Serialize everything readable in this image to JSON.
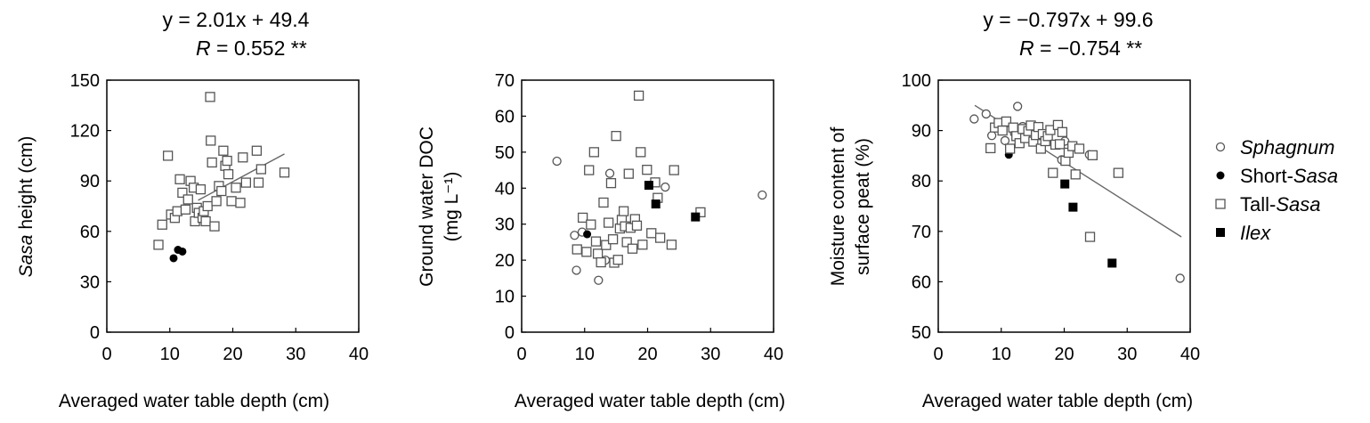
{
  "figure": {
    "legend": [
      {
        "label_prefix": "",
        "label_italic": "Sphagnum",
        "label_suffix": "",
        "marker": "open-circle"
      },
      {
        "label_prefix": "Short-",
        "label_italic": "Sasa",
        "label_suffix": "",
        "marker": "filled-circle"
      },
      {
        "label_prefix": "Tall-",
        "label_italic": "Sasa",
        "label_suffix": "",
        "marker": "open-square"
      },
      {
        "label_prefix": "",
        "label_italic": "Ilex",
        "label_suffix": "",
        "marker": "filled-square"
      }
    ],
    "colors": {
      "axis": "#000000",
      "open_marker_stroke": "#555555",
      "fill": "#000000",
      "fit_line": "#666666"
    }
  },
  "chart_data": [
    {
      "type": "scatter",
      "title": "",
      "equation": "y = 2.01x + 49.4",
      "r_label": "R",
      "r_value": " = 0.552 **",
      "ylabel_italic": "Sasa",
      "ylabel_rest": " height (cm)",
      "ylabel_line2": "",
      "xlabel": "Averaged water table depth (cm)",
      "xlim": [
        0,
        40
      ],
      "ylim": [
        0,
        150
      ],
      "xticks": [
        0,
        10,
        20,
        30,
        40
      ],
      "yticks": [
        0,
        30,
        60,
        90,
        120,
        150
      ],
      "fit": {
        "x": [
          14.5,
          28.2
        ],
        "y": [
          78.5,
          106.1
        ]
      },
      "series": [
        {
          "name": "Sphagnum",
          "marker": "open-circle",
          "x": [],
          "y": []
        },
        {
          "name": "Short-Sasa",
          "marker": "filled-circle",
          "x": [
            10.6,
            11.3,
            12.0
          ],
          "y": [
            44,
            49,
            48
          ]
        },
        {
          "name": "Tall-Sasa",
          "marker": "open-square",
          "x": [
            8.2,
            8.8,
            9.7,
            10.2,
            10.8,
            11.2,
            11.6,
            12.0,
            12.5,
            12.9,
            13.3,
            13.8,
            14.0,
            14.3,
            14.6,
            14.9,
            15.2,
            15.4,
            15.7,
            16.0,
            16.4,
            16.5,
            16.7,
            17.1,
            17.4,
            17.8,
            18.2,
            18.5,
            18.8,
            19.1,
            19.3,
            19.8,
            20.5,
            21.2,
            21.6,
            22.1,
            23.8,
            24.1,
            24.5,
            28.2
          ],
          "y": [
            52,
            64,
            105,
            70,
            68,
            72,
            91,
            83,
            73,
            79,
            90,
            86,
            66,
            74,
            71,
            85,
            68,
            72,
            66,
            75,
            140,
            114,
            101,
            63,
            78,
            87,
            84,
            108,
            99,
            102,
            94,
            78,
            86,
            77,
            104,
            89,
            108,
            89,
            97,
            95
          ]
        },
        {
          "name": "Ilex",
          "marker": "filled-square",
          "x": [],
          "y": []
        }
      ]
    },
    {
      "type": "scatter",
      "title": "",
      "equation": "",
      "r_label": "",
      "r_value": "",
      "ylabel_italic": "",
      "ylabel_rest": "Ground water DOC",
      "ylabel_line2": "(mg L⁻¹)",
      "xlabel": "Averaged water table depth (cm)",
      "xlim": [
        0,
        40
      ],
      "ylim": [
        0,
        70
      ],
      "xticks": [
        0,
        10,
        20,
        30,
        40
      ],
      "yticks": [
        0,
        10,
        20,
        30,
        40,
        50,
        60,
        70
      ],
      "fit": null,
      "series": [
        {
          "name": "Sphagnum",
          "marker": "open-circle",
          "x": [
            5.6,
            8.4,
            8.7,
            9.6,
            12.2,
            13.3,
            14.0,
            22.8,
            38.2
          ],
          "y": [
            47.5,
            26.9,
            17.2,
            27.8,
            14.4,
            20.0,
            44.1,
            40.3,
            38.1
          ]
        },
        {
          "name": "Short-Sasa",
          "marker": "filled-circle",
          "x": [
            10.4
          ],
          "y": [
            27.2
          ]
        },
        {
          "name": "Tall-Sasa",
          "marker": "open-square",
          "x": [
            8.8,
            9.7,
            10.3,
            10.7,
            11.0,
            11.5,
            11.8,
            12.1,
            12.6,
            13.0,
            13.4,
            13.8,
            14.2,
            14.5,
            14.7,
            15.0,
            15.3,
            15.6,
            15.9,
            16.2,
            16.4,
            16.7,
            17.0,
            17.3,
            17.6,
            18.0,
            18.3,
            18.6,
            18.9,
            19.2,
            19.9,
            20.6,
            21.2,
            21.6,
            22.0,
            23.8,
            24.2,
            28.4
          ],
          "y": [
            23.0,
            31.8,
            22.3,
            45.0,
            29.9,
            50.0,
            25.2,
            21.8,
            19.4,
            36.0,
            24.2,
            30.4,
            41.4,
            25.8,
            19.3,
            54.5,
            20.1,
            28.8,
            31.2,
            33.6,
            29.4,
            25.0,
            44.0,
            29.0,
            23.2,
            31.4,
            29.6,
            65.7,
            50.0,
            24.3,
            45.1,
            27.5,
            41.6,
            37.3,
            26.2,
            24.3,
            45.0,
            33.3
          ]
        },
        {
          "name": "Ilex",
          "marker": "filled-square",
          "x": [
            20.2,
            21.3,
            27.6
          ],
          "y": [
            40.8,
            35.6,
            32.0
          ]
        }
      ]
    },
    {
      "type": "scatter",
      "title": "",
      "equation": "y = −0.797x + 99.6",
      "r_label": "R",
      "r_value": " = −0.754 **",
      "ylabel_italic": "",
      "ylabel_rest": "Moisture content of",
      "ylabel_line2": "surface peat (%)",
      "xlabel": "Averaged water table depth (cm)",
      "xlim": [
        0,
        40
      ],
      "ylim": [
        50,
        100
      ],
      "xticks": [
        0,
        10,
        20,
        30,
        40
      ],
      "yticks": [
        50,
        60,
        70,
        80,
        90,
        100
      ],
      "fit": {
        "x": [
          5.8,
          38.6
        ],
        "y": [
          95.0,
          68.9
        ]
      },
      "series": [
        {
          "name": "Sphagnum",
          "marker": "open-circle",
          "x": [
            5.7,
            7.6,
            8.5,
            9.8,
            10.6,
            12.1,
            12.6,
            13.4,
            19.6,
            20.1,
            24.0,
            38.4
          ],
          "y": [
            92.3,
            93.3,
            89.0,
            91.4,
            88.0,
            89.5,
            94.8,
            90.8,
            84.2,
            87.9,
            85.2,
            60.7
          ]
        },
        {
          "name": "Short-Sasa",
          "marker": "filled-circle",
          "x": [
            11.2
          ],
          "y": [
            85.2
          ]
        },
        {
          "name": "Tall-Sasa",
          "marker": "open-square",
          "x": [
            8.3,
            9.0,
            9.6,
            10.2,
            10.8,
            11.4,
            11.9,
            12.4,
            12.9,
            13.4,
            13.8,
            14.3,
            14.7,
            15.1,
            15.5,
            15.9,
            16.3,
            16.6,
            17.0,
            17.4,
            17.8,
            18.2,
            18.6,
            19.0,
            19.3,
            19.7,
            20.2,
            20.7,
            21.3,
            21.8,
            22.4,
            24.1,
            24.5,
            28.6
          ],
          "y": [
            86.5,
            90.6,
            91.5,
            90.0,
            91.8,
            86.4,
            90.6,
            88.9,
            87.5,
            90.3,
            88.5,
            89.9,
            91.0,
            87.8,
            89.1,
            90.7,
            86.4,
            89.3,
            87.9,
            88.9,
            90.1,
            81.6,
            87.2,
            91.1,
            87.3,
            89.7,
            84.0,
            85.6,
            86.9,
            81.3,
            86.4,
            68.9,
            85.1,
            81.6
          ]
        },
        {
          "name": "Ilex",
          "marker": "filled-square",
          "x": [
            20.1,
            21.4,
            27.6
          ],
          "y": [
            79.4,
            74.8,
            63.7
          ]
        }
      ]
    }
  ]
}
